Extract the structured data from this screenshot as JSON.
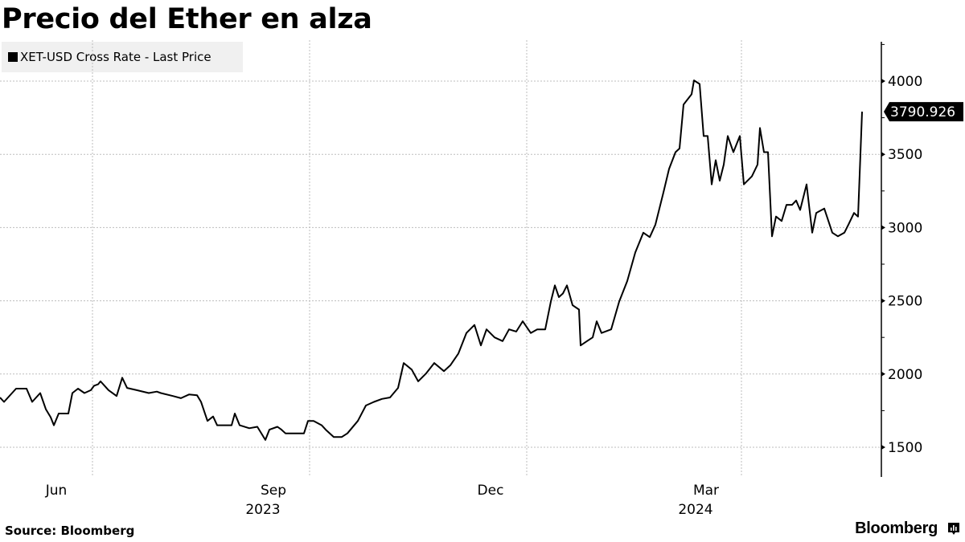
{
  "header": {
    "title": "Precio del Ether en alza"
  },
  "legend": {
    "label": "XET-USD Cross Rate - Last Price",
    "swatch_color": "#000000"
  },
  "last_value_badge": "3790.926",
  "footer": {
    "source": "Source: Bloomberg",
    "brand": "Bloomberg",
    "brand_icon": "bloomberg-chart-icon"
  },
  "chart_data": {
    "type": "line",
    "title": "Precio del Ether en alza",
    "series": [
      {
        "name": "XET-USD Cross Rate - Last Price",
        "color": "#000000",
        "last_value": 3790.926,
        "points": [
          [
            0,
            1840
          ],
          [
            5,
            1810
          ],
          [
            20,
            1900
          ],
          [
            33,
            1900
          ],
          [
            40,
            1810
          ],
          [
            50,
            1870
          ],
          [
            57,
            1760
          ],
          [
            63,
            1705
          ],
          [
            67,
            1650
          ],
          [
            73,
            1730
          ],
          [
            85,
            1730
          ],
          [
            90,
            1870
          ],
          [
            97,
            1900
          ],
          [
            105,
            1870
          ],
          [
            113,
            1890
          ],
          [
            117,
            1920
          ],
          [
            122,
            1930
          ],
          [
            125,
            1950
          ],
          [
            135,
            1890
          ],
          [
            145,
            1850
          ],
          [
            152,
            1975
          ],
          [
            158,
            1905
          ],
          [
            170,
            1890
          ],
          [
            185,
            1870
          ],
          [
            195,
            1880
          ],
          [
            200,
            1870
          ],
          [
            215,
            1850
          ],
          [
            225,
            1835
          ],
          [
            235,
            1860
          ],
          [
            245,
            1855
          ],
          [
            250,
            1810
          ],
          [
            258,
            1680
          ],
          [
            265,
            1710
          ],
          [
            270,
            1650
          ],
          [
            288,
            1650
          ],
          [
            292,
            1730
          ],
          [
            298,
            1650
          ],
          [
            310,
            1630
          ],
          [
            320,
            1640
          ],
          [
            330,
            1550
          ],
          [
            335,
            1620
          ],
          [
            345,
            1640
          ],
          [
            350,
            1620
          ],
          [
            355,
            1595
          ],
          [
            378,
            1595
          ],
          [
            383,
            1680
          ],
          [
            390,
            1680
          ],
          [
            400,
            1650
          ],
          [
            405,
            1620
          ],
          [
            415,
            1570
          ],
          [
            425,
            1570
          ],
          [
            432,
            1595
          ],
          [
            445,
            1680
          ],
          [
            455,
            1785
          ],
          [
            465,
            1810
          ],
          [
            475,
            1830
          ],
          [
            485,
            1840
          ],
          [
            495,
            1905
          ],
          [
            502,
            2075
          ],
          [
            512,
            2030
          ],
          [
            520,
            1950
          ],
          [
            530,
            2005
          ],
          [
            540,
            2075
          ],
          [
            552,
            2020
          ],
          [
            560,
            2060
          ],
          [
            570,
            2140
          ],
          [
            580,
            2280
          ],
          [
            590,
            2335
          ],
          [
            598,
            2195
          ],
          [
            605,
            2305
          ],
          [
            615,
            2250
          ],
          [
            625,
            2225
          ],
          [
            633,
            2305
          ],
          [
            642,
            2290
          ],
          [
            650,
            2360
          ],
          [
            660,
            2280
          ],
          [
            668,
            2305
          ],
          [
            678,
            2305
          ],
          [
            685,
            2495
          ],
          [
            690,
            2605
          ],
          [
            695,
            2525
          ],
          [
            700,
            2550
          ],
          [
            705,
            2605
          ],
          [
            712,
            2470
          ],
          [
            720,
            2440
          ],
          [
            722,
            2195
          ],
          [
            730,
            2225
          ],
          [
            737,
            2250
          ],
          [
            742,
            2360
          ],
          [
            748,
            2280
          ],
          [
            760,
            2305
          ],
          [
            770,
            2495
          ],
          [
            780,
            2635
          ],
          [
            790,
            2830
          ],
          [
            800,
            2965
          ],
          [
            808,
            2935
          ],
          [
            815,
            3020
          ],
          [
            825,
            3240
          ],
          [
            832,
            3400
          ],
          [
            840,
            3515
          ],
          [
            845,
            3540
          ],
          [
            850,
            3840
          ],
          [
            860,
            3910
          ],
          [
            863,
            4005
          ],
          [
            870,
            3980
          ],
          [
            875,
            3625
          ],
          [
            880,
            3625
          ],
          [
            885,
            3295
          ],
          [
            890,
            3460
          ],
          [
            895,
            3320
          ],
          [
            900,
            3430
          ],
          [
            905,
            3625
          ],
          [
            912,
            3515
          ],
          [
            920,
            3625
          ],
          [
            925,
            3295
          ],
          [
            935,
            3350
          ],
          [
            942,
            3430
          ],
          [
            945,
            3680
          ],
          [
            950,
            3515
          ],
          [
            955,
            3515
          ],
          [
            960,
            2940
          ],
          [
            965,
            3075
          ],
          [
            972,
            3045
          ],
          [
            978,
            3155
          ],
          [
            985,
            3155
          ],
          [
            990,
            3185
          ],
          [
            995,
            3120
          ],
          [
            1003,
            3295
          ],
          [
            1010,
            2965
          ],
          [
            1015,
            3100
          ],
          [
            1025,
            3130
          ],
          [
            1035,
            2965
          ],
          [
            1042,
            2940
          ],
          [
            1050,
            2965
          ],
          [
            1055,
            3020
          ],
          [
            1062,
            3100
          ],
          [
            1067,
            3075
          ],
          [
            1072,
            3790.926
          ]
        ]
      }
    ],
    "x_is_pixel_position": true,
    "x_ticks": [
      {
        "label": "Jun",
        "pos": 70
      },
      {
        "label": "Sep",
        "pos": 340,
        "year": "2023"
      },
      {
        "label": "Dec",
        "pos": 610
      },
      {
        "label": "Mar",
        "pos": 878,
        "year": "2024"
      }
    ],
    "x_gridlines": [
      115,
      385,
      655,
      922
    ],
    "y_ticks": [
      1500,
      2000,
      2500,
      3000,
      3500,
      4000
    ],
    "ylim": [
      1300,
      4250
    ],
    "xlabel": "",
    "ylabel": "",
    "grid": true,
    "legend_position": "top-left"
  }
}
